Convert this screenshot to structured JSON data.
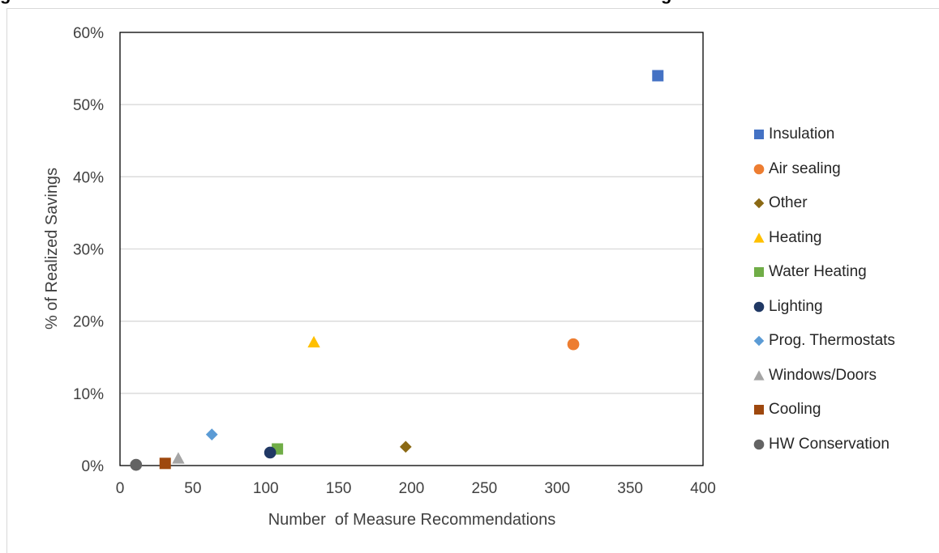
{
  "header_fragments": [
    "g",
    "g"
  ],
  "chart_data": {
    "type": "scatter",
    "title": "",
    "xlabel": "Number  of Measure Recommendations",
    "ylabel": "% of Realized Savings",
    "xlim": [
      0,
      400
    ],
    "ylim": [
      0,
      60
    ],
    "x_ticks": [
      "0",
      "50",
      "100",
      "150",
      "200",
      "250",
      "300",
      "350",
      "400"
    ],
    "y_ticks": [
      "0%",
      "10%",
      "20%",
      "30%",
      "40%",
      "50%",
      "60%"
    ],
    "grid": "horizontal",
    "legend_position": "right",
    "series": [
      {
        "name": "Insulation",
        "marker": "square",
        "color": "#4472C4",
        "x": 369,
        "y": 54.0
      },
      {
        "name": "Air sealing",
        "marker": "circle",
        "color": "#ED7D31",
        "x": 311,
        "y": 16.8
      },
      {
        "name": "Other",
        "marker": "diamond",
        "color": "#8B6914",
        "x": 196,
        "y": 2.6
      },
      {
        "name": "Heating",
        "marker": "triangle",
        "color": "#FFC000",
        "x": 133,
        "y": 17.1
      },
      {
        "name": "Water Heating",
        "marker": "square",
        "color": "#70AD47",
        "x": 108,
        "y": 2.3
      },
      {
        "name": "Lighting",
        "marker": "circle",
        "color": "#203864",
        "x": 103,
        "y": 1.8
      },
      {
        "name": "Prog. Thermostats",
        "marker": "diamond",
        "color": "#5B9BD5",
        "x": 63,
        "y": 4.3
      },
      {
        "name": "Windows/Doors",
        "marker": "triangle",
        "color": "#A5A5A5",
        "x": 40,
        "y": 1.0
      },
      {
        "name": "Cooling",
        "marker": "square",
        "color": "#9E480E",
        "x": 31,
        "y": 0.3
      },
      {
        "name": "HW Conservation",
        "marker": "circle",
        "color": "#636363",
        "x": 11,
        "y": 0.1
      }
    ]
  }
}
